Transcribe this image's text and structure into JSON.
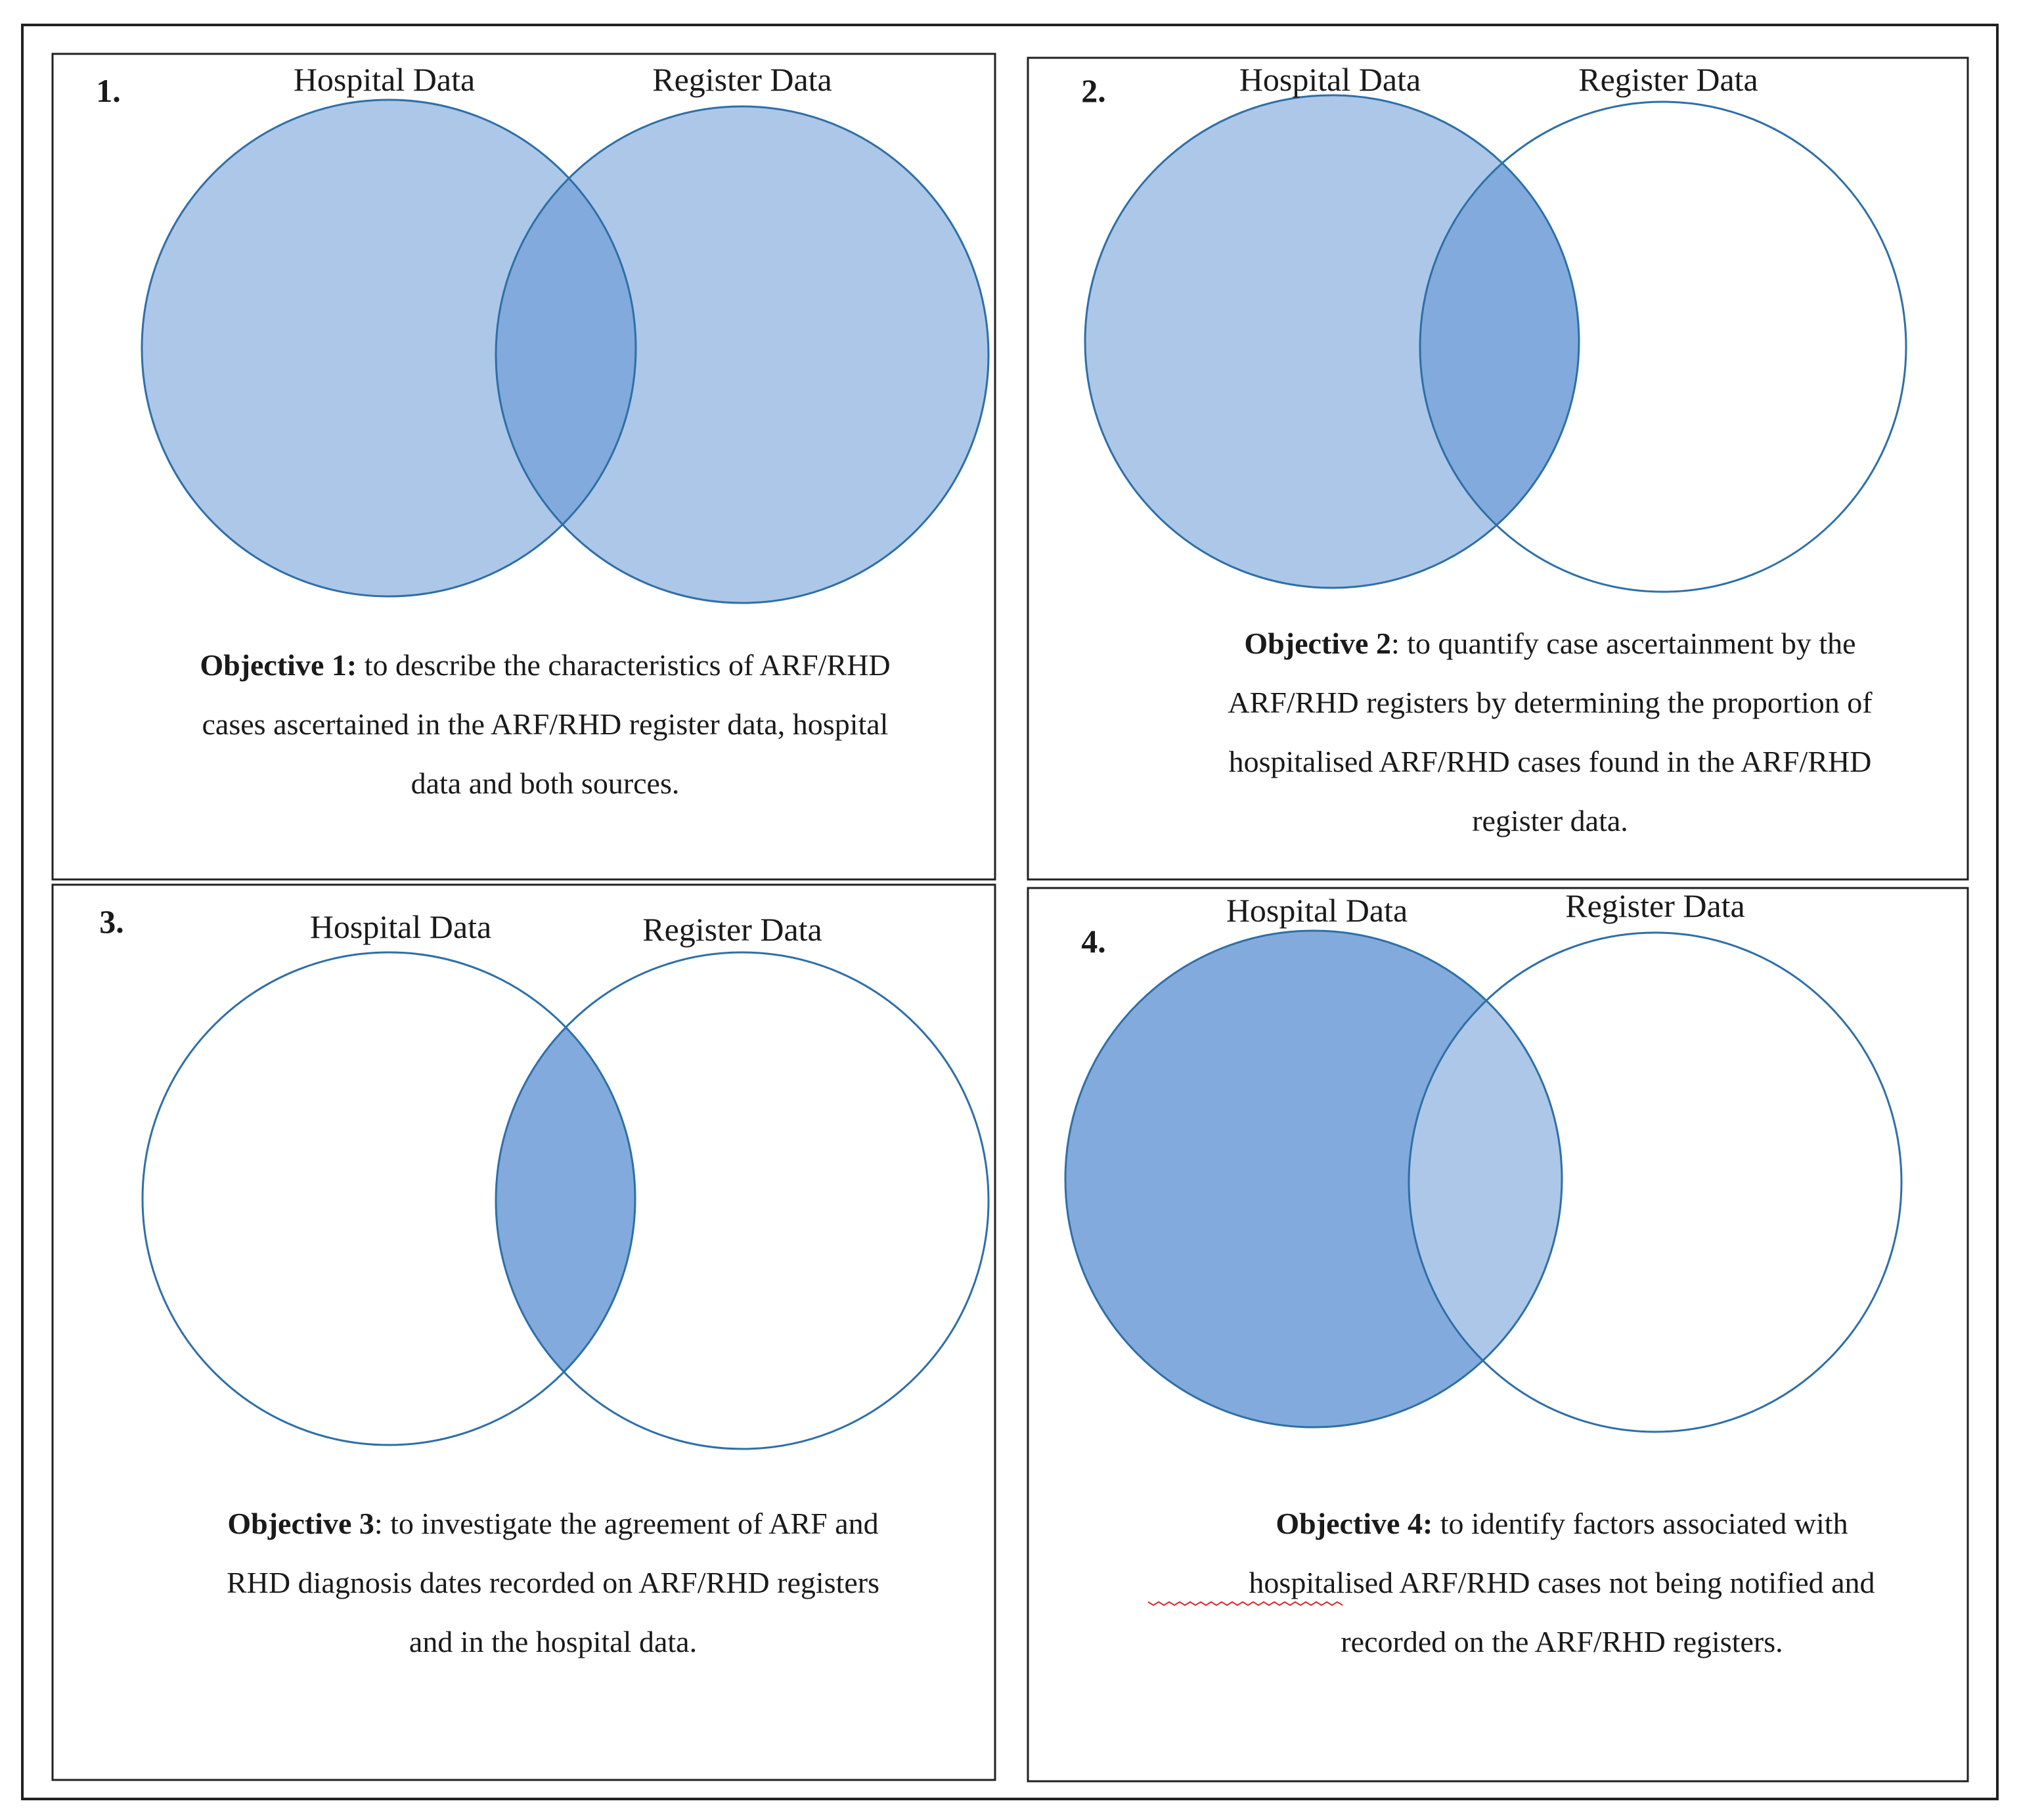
{
  "colors": {
    "light_fill": "#adc7e8",
    "dark_fill": "#82aadc",
    "stroke": "#2e6fa8",
    "frame": "#222222",
    "spellcheck": "#d9262c"
  },
  "panels": [
    {
      "number": "1.",
      "circle_labels": [
        "Hospital Data",
        "Register Data"
      ],
      "shading": {
        "hospital_only": "light",
        "overlap": "dark",
        "register_only": "light"
      },
      "objective": {
        "lines": [
          {
            "bold": "Objective 1:",
            "text": " to describe the characteristics of ARF/RHD"
          },
          {
            "bold": "",
            "text": "cases ascertained in the ARF/RHD register data, hospital"
          },
          {
            "bold": "",
            "text": "data and both sources."
          }
        ]
      }
    },
    {
      "number": "2.",
      "circle_labels": [
        "Hospital Data",
        "Register Data"
      ],
      "shading": {
        "hospital_only": "light",
        "overlap": "dark",
        "register_only": "none"
      },
      "objective": {
        "lines": [
          {
            "bold": "Objective 2",
            "text": ": to quantify case ascertainment by the"
          },
          {
            "bold": "",
            "text": "ARF/RHD registers by determining the proportion of"
          },
          {
            "bold": "",
            "text": "hospitalised ARF/RHD cases found in the ARF/RHD"
          },
          {
            "bold": "",
            "text": "register data."
          }
        ]
      }
    },
    {
      "number": "3.",
      "circle_labels": [
        "Hospital Data",
        "Register Data"
      ],
      "shading": {
        "hospital_only": "none",
        "overlap": "dark",
        "register_only": "none"
      },
      "objective": {
        "lines": [
          {
            "bold": "Objective 3",
            "text": ": to investigate the agreement of ARF and"
          },
          {
            "bold": "",
            "text": "RHD diagnosis dates recorded on ARF/RHD registers"
          },
          {
            "bold": "",
            "text": "and in the hospital data."
          }
        ]
      }
    },
    {
      "number": "4.",
      "circle_labels": [
        "Hospital Data",
        "Register Data"
      ],
      "shading": {
        "hospital_only": "dark",
        "overlap": "light",
        "register_only": "none"
      },
      "objective": {
        "lines": [
          {
            "bold": "Objective 4:",
            "text": " to identify factors associated with"
          },
          {
            "bold": "",
            "text": "hospitalised ARF/RHD cases not being notified and"
          },
          {
            "bold": "",
            "text": "recorded on the ARF/RHD registers."
          }
        ]
      }
    }
  ]
}
